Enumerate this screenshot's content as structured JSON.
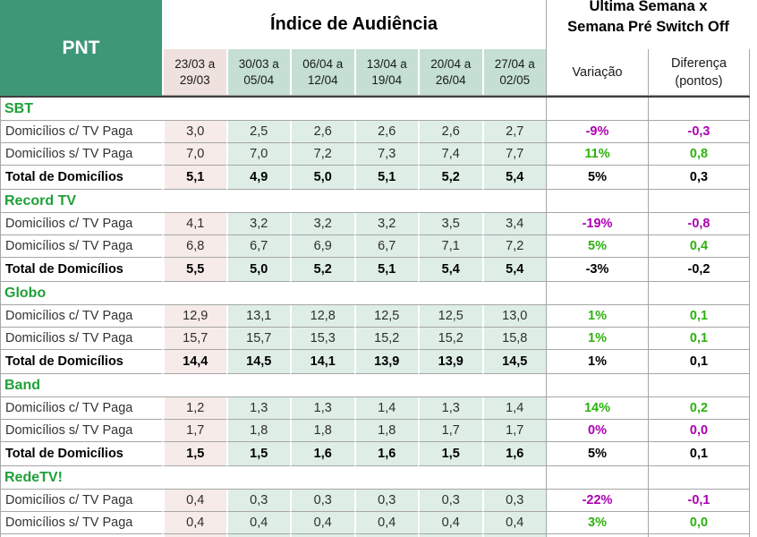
{
  "header": {
    "panel_label": "PNT",
    "title": "Índice de Audiência",
    "comparison_line1": "Última Semana x",
    "comparison_line2": "Semana Pré Switch Off",
    "weeks": [
      "23/03 a 29/03",
      "30/03 a 05/04",
      "06/04 a 12/04",
      "13/04 a 19/04",
      "20/04 a 26/04",
      "27/04 a 02/05"
    ],
    "variation_label": "Variação",
    "difference_label": "Diferença (pontos)"
  },
  "colors": {
    "brand_green": "#3e9878",
    "section_title_green": "#1fa038",
    "positive": "#2db20e",
    "negative": "#ac00b2",
    "week1_fill": "#efe1dd",
    "weeks_fill": "#c5e0d3",
    "data_col1_fill": "#f6ebe8",
    "data_cols_fill": "#deeee6"
  },
  "networks": [
    {
      "name": "SBT",
      "rows": [
        {
          "label": "Domicílios c/ TV Paga",
          "values": [
            "3,0",
            "2,5",
            "2,6",
            "2,6",
            "2,6",
            "2,7"
          ],
          "variation": "-9%",
          "difference": "-0,3",
          "trend": "negative",
          "total": false
        },
        {
          "label": "Domicílios s/ TV Paga",
          "values": [
            "7,0",
            "7,0",
            "7,2",
            "7,3",
            "7,4",
            "7,7"
          ],
          "variation": "11%",
          "difference": "0,8",
          "trend": "positive",
          "total": false
        },
        {
          "label": "Total de Domicílios",
          "values": [
            "5,1",
            "4,9",
            "5,0",
            "5,1",
            "5,2",
            "5,4"
          ],
          "variation": "5%",
          "difference": "0,3",
          "trend": "positive",
          "total": true
        }
      ]
    },
    {
      "name": "Record TV",
      "rows": [
        {
          "label": "Domicílios c/ TV Paga",
          "values": [
            "4,1",
            "3,2",
            "3,2",
            "3,2",
            "3,5",
            "3,4"
          ],
          "variation": "-19%",
          "difference": "-0,8",
          "trend": "negative",
          "total": false
        },
        {
          "label": "Domicílios s/ TV Paga",
          "values": [
            "6,8",
            "6,7",
            "6,9",
            "6,7",
            "7,1",
            "7,2"
          ],
          "variation": "5%",
          "difference": "0,4",
          "trend": "positive",
          "total": false
        },
        {
          "label": "Total de Domicílios",
          "values": [
            "5,5",
            "5,0",
            "5,2",
            "5,1",
            "5,4",
            "5,4"
          ],
          "variation": "-3%",
          "difference": "-0,2",
          "trend": "negative",
          "total": true
        }
      ]
    },
    {
      "name": "Globo",
      "rows": [
        {
          "label": "Domicílios c/ TV Paga",
          "values": [
            "12,9",
            "13,1",
            "12,8",
            "12,5",
            "12,5",
            "13,0"
          ],
          "variation": "1%",
          "difference": "0,1",
          "trend": "positive",
          "total": false
        },
        {
          "label": "Domicílios s/ TV Paga",
          "values": [
            "15,7",
            "15,7",
            "15,3",
            "15,2",
            "15,2",
            "15,8"
          ],
          "variation": "1%",
          "difference": "0,1",
          "trend": "positive",
          "total": false
        },
        {
          "label": "Total de Domicílios",
          "values": [
            "14,4",
            "14,5",
            "14,1",
            "13,9",
            "13,9",
            "14,5"
          ],
          "variation": "1%",
          "difference": "0,1",
          "trend": "positive",
          "total": true
        }
      ]
    },
    {
      "name": "Band",
      "rows": [
        {
          "label": "Domicílios c/ TV Paga",
          "values": [
            "1,2",
            "1,3",
            "1,3",
            "1,4",
            "1,3",
            "1,4"
          ],
          "variation": "14%",
          "difference": "0,2",
          "trend": "positive",
          "total": false
        },
        {
          "label": "Domicílios s/ TV Paga",
          "values": [
            "1,7",
            "1,8",
            "1,8",
            "1,8",
            "1,7",
            "1,7"
          ],
          "variation": "0%",
          "difference": "0,0",
          "trend": "negative",
          "total": false
        },
        {
          "label": "Total de Domicílios",
          "values": [
            "1,5",
            "1,5",
            "1,6",
            "1,6",
            "1,5",
            "1,6"
          ],
          "variation": "5%",
          "difference": "0,1",
          "trend": "positive",
          "total": true
        }
      ]
    },
    {
      "name": "RedeTV!",
      "rows": [
        {
          "label": "Domicílios c/ TV Paga",
          "values": [
            "0,4",
            "0,3",
            "0,3",
            "0,3",
            "0,3",
            "0,3"
          ],
          "variation": "-22%",
          "difference": "-0,1",
          "trend": "negative",
          "total": false
        },
        {
          "label": "Domicílios s/ TV Paga",
          "values": [
            "0,4",
            "0,4",
            "0,4",
            "0,4",
            "0,4",
            "0,4"
          ],
          "variation": "3%",
          "difference": "0,0",
          "trend": "positive",
          "total": false
        }
      ]
    }
  ]
}
